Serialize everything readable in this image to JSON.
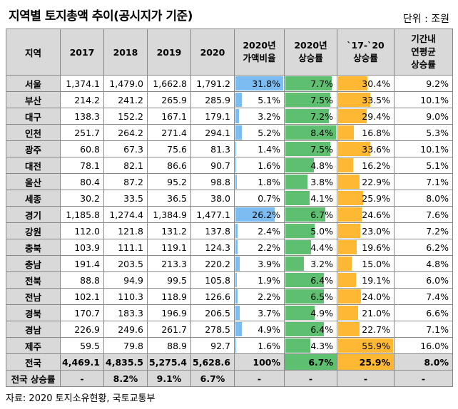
{
  "title": "지역별 토지총액 추이(공시지가 기준)",
  "unit": "단위 : 조원",
  "headers": {
    "region": "지역",
    "y2017": "2017",
    "y2018": "2018",
    "y2019": "2019",
    "y2020": "2020",
    "share": [
      "2020년",
      "가액비율"
    ],
    "growth": [
      "2020년",
      "상승률"
    ],
    "growth1720": [
      "`17-`20",
      "상승률"
    ],
    "avg": [
      "기간내",
      "연평균",
      "상승률"
    ]
  },
  "colors": {
    "share": "#7cbcf0",
    "growth": "#5fbf70",
    "growth1720": "#ffb833",
    "header_bg": "#d9d9d9"
  },
  "rows": [
    {
      "region": "서울",
      "y2017": "1,374.1",
      "y2018": "1,479.0",
      "y2019": "1,662.8",
      "y2020": "1,791.2",
      "share": "31.8%",
      "growth": "7.7%",
      "g1720": "30.4%",
      "avg": "9.2%"
    },
    {
      "region": "부산",
      "y2017": "214.2",
      "y2018": "241.2",
      "y2019": "265.9",
      "y2020": "285.9",
      "share": "5.1%",
      "growth": "7.5%",
      "g1720": "33.5%",
      "avg": "10.1%"
    },
    {
      "region": "대구",
      "y2017": "138.3",
      "y2018": "152.2",
      "y2019": "167.1",
      "y2020": "179.1",
      "share": "3.2%",
      "growth": "7.2%",
      "g1720": "29.4%",
      "avg": "9.0%"
    },
    {
      "region": "인천",
      "y2017": "251.7",
      "y2018": "264.2",
      "y2019": "271.4",
      "y2020": "294.1",
      "share": "5.2%",
      "growth": "8.4%",
      "g1720": "16.8%",
      "avg": "5.3%"
    },
    {
      "region": "광주",
      "y2017": "60.8",
      "y2018": "67.3",
      "y2019": "75.6",
      "y2020": "81.3",
      "share": "1.4%",
      "growth": "7.5%",
      "g1720": "33.6%",
      "avg": "10.1%"
    },
    {
      "region": "대전",
      "y2017": "78.1",
      "y2018": "82.1",
      "y2019": "86.6",
      "y2020": "90.7",
      "share": "1.6%",
      "growth": "4.8%",
      "g1720": "16.2%",
      "avg": "5.1%"
    },
    {
      "region": "울산",
      "y2017": "80.4",
      "y2018": "87.2",
      "y2019": "95.2",
      "y2020": "98.8",
      "share": "1.8%",
      "growth": "3.8%",
      "g1720": "22.9%",
      "avg": "7.1%"
    },
    {
      "region": "세종",
      "y2017": "30.2",
      "y2018": "33.5",
      "y2019": "36.5",
      "y2020": "38.0",
      "share": "0.7%",
      "growth": "4.1%",
      "g1720": "25.9%",
      "avg": "8.0%"
    },
    {
      "region": "경기",
      "y2017": "1,185.8",
      "y2018": "1,274.4",
      "y2019": "1,384.9",
      "y2020": "1,477.1",
      "share": "26.2%",
      "growth": "6.7%",
      "g1720": "24.6%",
      "avg": "7.6%"
    },
    {
      "region": "강원",
      "y2017": "112.0",
      "y2018": "121.8",
      "y2019": "131.2",
      "y2020": "137.8",
      "share": "2.4%",
      "growth": "5.0%",
      "g1720": "23.0%",
      "avg": "7.2%"
    },
    {
      "region": "충북",
      "y2017": "103.9",
      "y2018": "111.1",
      "y2019": "119.1",
      "y2020": "124.3",
      "share": "2.2%",
      "growth": "4.4%",
      "g1720": "19.6%",
      "avg": "6.2%"
    },
    {
      "region": "충남",
      "y2017": "191.4",
      "y2018": "203.5",
      "y2019": "213.3",
      "y2020": "220.2",
      "share": "3.9%",
      "growth": "3.2%",
      "g1720": "15.0%",
      "avg": "4.8%"
    },
    {
      "region": "전북",
      "y2017": "88.8",
      "y2018": "94.9",
      "y2019": "99.5",
      "y2020": "105.8",
      "share": "1.9%",
      "growth": "6.4%",
      "g1720": "19.1%",
      "avg": "6.0%"
    },
    {
      "region": "전남",
      "y2017": "102.1",
      "y2018": "110.3",
      "y2019": "118.9",
      "y2020": "126.6",
      "share": "2.2%",
      "growth": "6.5%",
      "g1720": "24.0%",
      "avg": "7.4%"
    },
    {
      "region": "경북",
      "y2017": "170.7",
      "y2018": "183.3",
      "y2019": "196.9",
      "y2020": "206.5",
      "share": "3.7%",
      "growth": "4.9%",
      "g1720": "21.0%",
      "avg": "6.6%"
    },
    {
      "region": "경남",
      "y2017": "226.9",
      "y2018": "249.6",
      "y2019": "261.7",
      "y2020": "278.5",
      "share": "4.9%",
      "growth": "6.4%",
      "g1720": "22.7%",
      "avg": "7.1%"
    },
    {
      "region": "제주",
      "y2017": "59.5",
      "y2018": "79.8",
      "y2019": "88.9",
      "y2020": "92.7",
      "share": "1.6%",
      "growth": "4.3%",
      "g1720": "55.9%",
      "avg": "16.0%"
    }
  ],
  "total": {
    "region": "전국",
    "y2017": "4,469.1",
    "y2018": "4,835.5",
    "y2019": "5,275.4",
    "y2020": "5,628.6",
    "share": "100%",
    "growth": "6.7%",
    "g1720": "25.9%",
    "avg": "8.0%"
  },
  "national_rate": {
    "label": "전국 상승률",
    "y2017": "-",
    "y2018": "8.2%",
    "y2019": "9.1%",
    "y2020": "6.7%",
    "share": "-",
    "growth": "-",
    "g1720": "-",
    "avg": "-"
  },
  "bar_scale": {
    "share_max": 31.8,
    "growth_max": 8.4,
    "g1720_max": 55.9
  },
  "source": "자료: 2020 토지소유현황, 국토교통부"
}
